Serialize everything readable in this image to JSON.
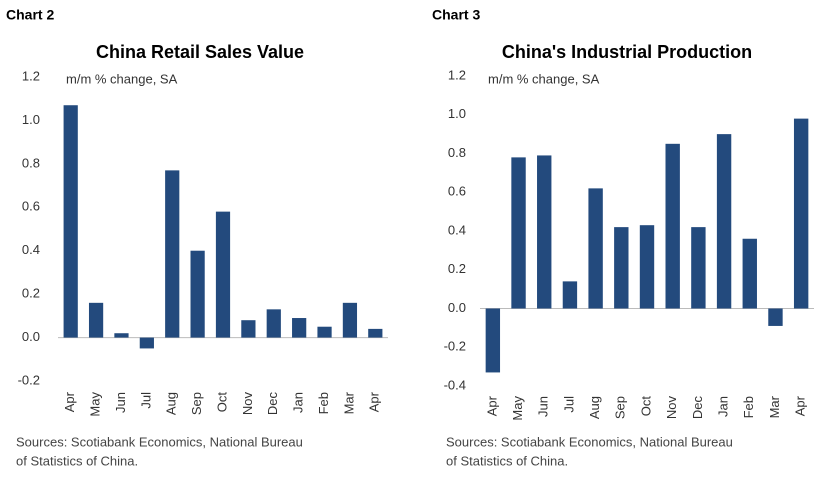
{
  "chart_data": [
    {
      "type": "bar",
      "chart_label": "Chart 2",
      "title": "China Retail Sales Value",
      "subtitle": "m/m % change, SA",
      "categories": [
        "Apr",
        "May",
        "Jun",
        "Jul",
        "Aug",
        "Sep",
        "Oct",
        "Nov",
        "Dec",
        "Jan",
        "Feb",
        "Mar",
        "Apr"
      ],
      "values": [
        1.07,
        0.16,
        0.02,
        -0.05,
        0.77,
        0.4,
        0.58,
        0.08,
        0.13,
        0.09,
        0.05,
        0.16,
        0.04
      ],
      "color": "#234a7d",
      "ylim": [
        -0.2,
        1.2
      ],
      "yticks": [
        {
          "value": -0.2,
          "label": "-0.2"
        },
        {
          "value": 0,
          "label": "0.0"
        },
        {
          "value": 0.2,
          "label": "0.2"
        },
        {
          "value": 0.4,
          "label": "0.4"
        },
        {
          "value": 0.6,
          "label": "0.6"
        },
        {
          "value": 0.8,
          "label": "0.8"
        },
        {
          "value": 1.0,
          "label": "1.0"
        },
        {
          "value": 1.2,
          "label": "1.2"
        }
      ],
      "note": [
        "Sources: Scotiabank Economics, National Bureau",
        "of Statistics of China."
      ]
    },
    {
      "type": "bar",
      "chart_label": "Chart 3",
      "title": "China's Industrial Production",
      "subtitle": "m/m % change, SA",
      "categories": [
        "Apr",
        "May",
        "Jun",
        "Jul",
        "Aug",
        "Sep",
        "Oct",
        "Nov",
        "Dec",
        "Jan",
        "Feb",
        "Mar",
        "Apr"
      ],
      "values": [
        -0.33,
        0.78,
        0.79,
        0.14,
        0.62,
        0.42,
        0.43,
        0.85,
        0.42,
        0.9,
        0.36,
        -0.09,
        0.98
      ],
      "color": "#234a7d",
      "ylim": [
        -0.4,
        1.2
      ],
      "yticks": [
        {
          "value": -0.4,
          "label": "-0.4"
        },
        {
          "value": -0.2,
          "label": "-0.2"
        },
        {
          "value": 0,
          "label": "0.0"
        },
        {
          "value": 0.2,
          "label": "0.2"
        },
        {
          "value": 0.4,
          "label": "0.4"
        },
        {
          "value": 0.6,
          "label": "0.6"
        },
        {
          "value": 0.8,
          "label": "0.8"
        },
        {
          "value": 1.0,
          "label": "1.0"
        },
        {
          "value": 1.2,
          "label": "1.2"
        }
      ],
      "note": [
        "Sources: Scotiabank Economics, National Bureau",
        "of Statistics of China."
      ]
    }
  ]
}
